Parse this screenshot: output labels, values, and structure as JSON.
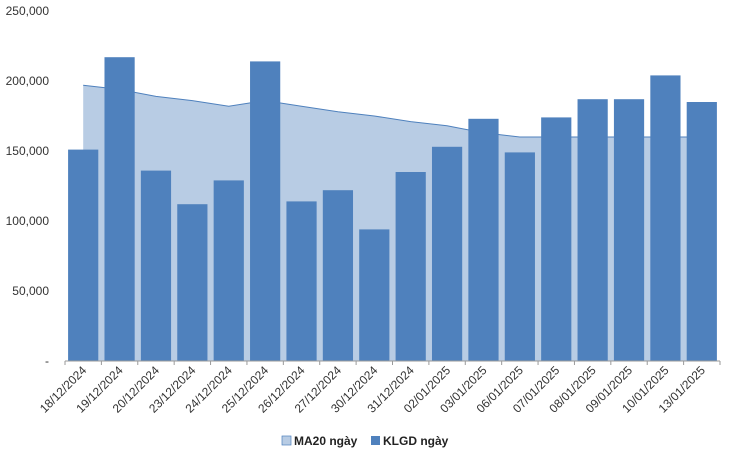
{
  "chart_data": {
    "type": "bar",
    "categories": [
      "18/12/2024",
      "19/12/2024",
      "20/12/2024",
      "23/12/2024",
      "24/12/2024",
      "25/12/2024",
      "26/12/2024",
      "27/12/2024",
      "30/12/2024",
      "31/12/2024",
      "02/01/2025",
      "03/01/2025",
      "06/01/2025",
      "07/01/2025",
      "08/01/2025",
      "09/01/2025",
      "10/01/2025",
      "13/01/2025"
    ],
    "series": [
      {
        "name": "MA20 ngày",
        "kind": "area",
        "color": "#b8cce4",
        "line_color": "#4f81bd",
        "values": [
          197000,
          194000,
          189000,
          186000,
          182000,
          186000,
          182000,
          178000,
          175000,
          171000,
          168000,
          163000,
          160000,
          160000,
          160000,
          160000,
          160000,
          160000
        ]
      },
      {
        "name": "KLGD ngày",
        "kind": "bar",
        "color": "#4f81bd",
        "values": [
          151000,
          217000,
          136000,
          112000,
          129000,
          214000,
          114000,
          122000,
          94000,
          135000,
          153000,
          173000,
          149000,
          174000,
          187000,
          187000,
          204000,
          185000
        ]
      }
    ],
    "ylim": [
      0,
      250000
    ],
    "yticks": [
      0,
      50000,
      100000,
      150000,
      200000,
      250000
    ],
    "ytick_labels": [
      "-",
      "50,000",
      "100,000",
      "150,000",
      "200,000",
      "250,000"
    ],
    "grid": false,
    "legend_position": "bottom"
  }
}
